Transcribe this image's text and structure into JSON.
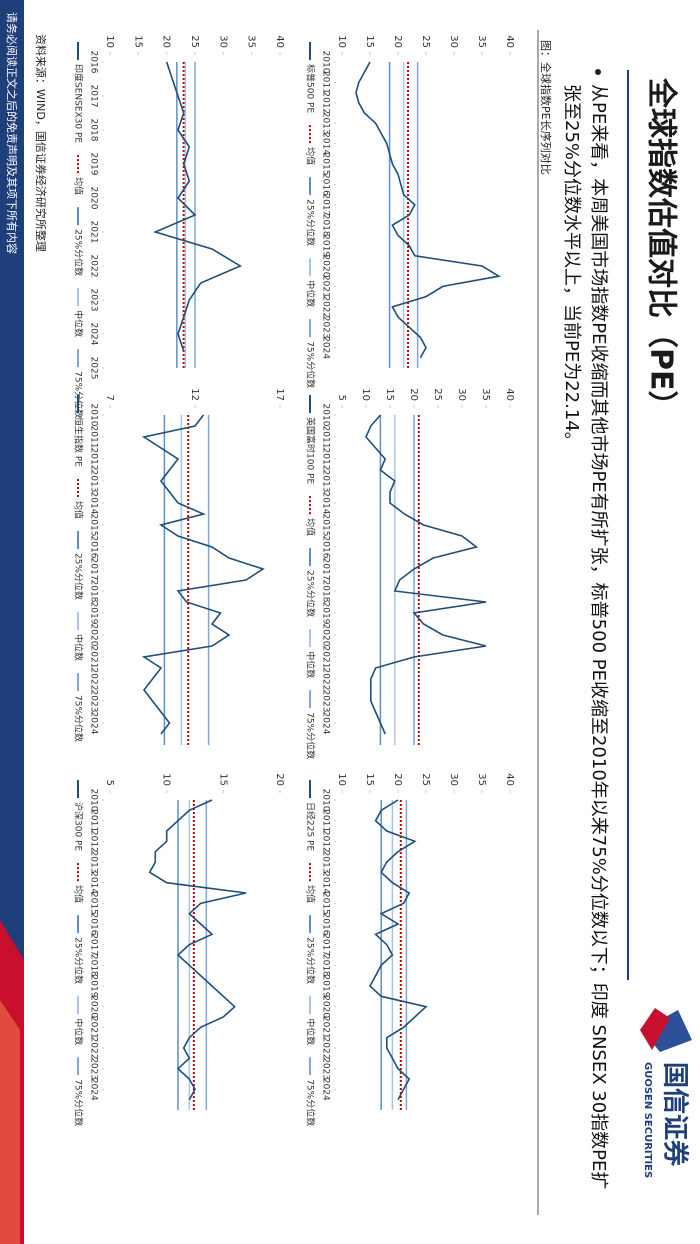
{
  "header": {
    "title": "全球指数估值对比（PE）",
    "logo_cn": "国信证券",
    "logo_en": "GUOSEN SECURITIES"
  },
  "bullet": "从PE来看，本周美国市场指数PE收缩而其他市场PE有所扩张，标普500 PE收缩至2010年以来75%分位数以下；印度 SNSEX 30指数PE扩张至25%分位数水平以上，当前PE为22.14。",
  "caption": "图：全球指数PE长序列对比",
  "source": "资料来源：WIND，国信证券经济研究所整理",
  "disclaimer": "请务必阅读正文之后的免责声明及其项下所有内容",
  "chart_data": [
    {
      "type": "line",
      "x": [
        2010,
        2010.5,
        2011,
        2011.5,
        2012,
        2012.5,
        2013,
        2013.5,
        2014,
        2014.5,
        2015,
        2015.5,
        2016,
        2016.5,
        2017,
        2017.5,
        2018,
        2018.5,
        2019,
        2019.5,
        2020,
        2020.5,
        2021,
        2021.5,
        2022,
        2022.5,
        2023,
        2023.5,
        2024,
        2024.5
      ],
      "series": [
        {
          "name": "标普500 PE",
          "color": "#1f4e79",
          "values": [
            15,
            14,
            13,
            12.5,
            13,
            14,
            16,
            17,
            18,
            18.5,
            19,
            20,
            20.5,
            21,
            23,
            22,
            19,
            20,
            22,
            23,
            35,
            38,
            28,
            25,
            19,
            20,
            22,
            24,
            25,
            24
          ]
        }
      ],
      "reference_lines": [
        {
          "name": "均值",
          "value": 21.8,
          "color": "#c00000",
          "style": "dotted"
        },
        {
          "name": "25%分位数",
          "value": 18.5,
          "color": "#5b8fd0",
          "style": "solid"
        },
        {
          "name": "中位数",
          "value": 21,
          "color": "#a9c6ea",
          "style": "solid"
        },
        {
          "name": "75%分位数",
          "value": 23.5,
          "color": "#7fa7dc",
          "style": "solid"
        }
      ],
      "xlim": [
        2010,
        2025
      ],
      "xticks": [
        2010,
        2011,
        2012,
        2013,
        2014,
        2015,
        2016,
        2017,
        2018,
        2019,
        2020,
        2021,
        2022,
        2023,
        2024
      ],
      "ylim": [
        10,
        40
      ],
      "yticks": [
        10,
        15,
        20,
        25,
        30,
        35,
        40
      ]
    },
    {
      "type": "line",
      "x": [
        2010,
        2010.5,
        2011,
        2011.5,
        2012,
        2012.5,
        2013,
        2013.5,
        2014,
        2014.5,
        2015,
        2015.5,
        2016,
        2016.5,
        2017,
        2017.5,
        2018,
        2018.5,
        2019,
        2019.5,
        2020,
        2020.5,
        2021,
        2021.5,
        2022,
        2022.5,
        2023,
        2023.5,
        2024,
        2024.5
      ],
      "series": [
        {
          "name": "英国富时100 PE",
          "color": "#1f4e79",
          "values": [
            13,
            11,
            10,
            12,
            14,
            13,
            16,
            15,
            15,
            18,
            22,
            30,
            33,
            24,
            20,
            17,
            16,
            35,
            20,
            22,
            26,
            35,
            20,
            12,
            11,
            11,
            11,
            12,
            13,
            14
          ]
        }
      ],
      "reference_lines": [
        {
          "name": "均值",
          "value": 21,
          "color": "#c00000",
          "style": "dotted"
        },
        {
          "name": "25%分位数",
          "value": 13,
          "color": "#5b8fd0",
          "style": "solid"
        },
        {
          "name": "中位数",
          "value": 16,
          "color": "#a9c6ea",
          "style": "solid"
        },
        {
          "name": "75%分位数",
          "value": 20,
          "color": "#7fa7dc",
          "style": "solid"
        }
      ],
      "xlim": [
        2010,
        2025
      ],
      "xticks": [
        2010,
        2011,
        2012,
        2013,
        2014,
        2015,
        2016,
        2017,
        2018,
        2019,
        2020,
        2021,
        2022,
        2023,
        2024
      ],
      "ylim": [
        5,
        40
      ],
      "yticks": [
        5,
        10,
        15,
        20,
        25,
        30,
        35,
        40
      ]
    },
    {
      "type": "line",
      "x": [
        2010,
        2010.5,
        2011,
        2011.5,
        2012,
        2012.5,
        2013,
        2013.5,
        2014,
        2014.5,
        2015,
        2015.5,
        2016,
        2016.5,
        2017,
        2017.5,
        2018,
        2018.5,
        2019,
        2019.5,
        2020,
        2020.5,
        2021,
        2021.5,
        2022,
        2022.5,
        2023,
        2023.5,
        2024,
        2024.5
      ],
      "series": [
        {
          "name": "日经225 PE",
          "color": "#1f4e79",
          "values": [
            20,
            17,
            16,
            18,
            23,
            20,
            18,
            17,
            19,
            22,
            21,
            17,
            20,
            16,
            18,
            19,
            17,
            16,
            15,
            17,
            25,
            23,
            21,
            18,
            18,
            19,
            20,
            22,
            21,
            20
          ]
        }
      ],
      "reference_lines": [
        {
          "name": "均值",
          "value": 20.5,
          "color": "#c00000",
          "style": "dotted"
        },
        {
          "name": "25%分位数",
          "value": 17,
          "color": "#5b8fd0",
          "style": "solid"
        },
        {
          "name": "中位数",
          "value": 19,
          "color": "#a9c6ea",
          "style": "solid"
        },
        {
          "name": "75%分位数",
          "value": 21.5,
          "color": "#7fa7dc",
          "style": "solid"
        }
      ],
      "xlim": [
        2010,
        2025
      ],
      "xticks": [
        2010,
        2011,
        2012,
        2013,
        2014,
        2015,
        2016,
        2017,
        2018,
        2019,
        2020,
        2021,
        2022,
        2023,
        2024
      ],
      "ylim": [
        10,
        40
      ],
      "yticks": [
        10,
        15,
        20,
        25,
        30,
        35,
        40
      ]
    },
    {
      "type": "line",
      "x": [
        2016,
        2016.5,
        2017,
        2017.5,
        2018,
        2018.5,
        2019,
        2019.5,
        2020,
        2020.5,
        2021,
        2021.5,
        2022,
        2022.5,
        2023,
        2023.5,
        2024,
        2024.5
      ],
      "series": [
        {
          "name": "印度SENSEX30 PE",
          "color": "#1f4e79",
          "values": [
            20,
            21,
            22,
            23,
            22,
            24,
            23,
            24,
            22,
            25,
            18,
            28,
            33,
            26,
            24,
            23,
            22,
            23
          ]
        }
      ],
      "reference_lines": [
        {
          "name": "均值",
          "value": 23,
          "color": "#c00000",
          "style": "dotted"
        },
        {
          "name": "25%分位数",
          "value": 21.8,
          "color": "#5b8fd0",
          "style": "solid"
        },
        {
          "name": "中位数",
          "value": 23.3,
          "color": "#a9c6ea",
          "style": "solid"
        },
        {
          "name": "75%分位数",
          "value": 25,
          "color": "#7fa7dc",
          "style": "solid"
        }
      ],
      "xlim": [
        2016,
        2025
      ],
      "xticks": [
        2016,
        2017,
        2018,
        2019,
        2020,
        2021,
        2022,
        2023,
        2024,
        2025
      ],
      "ylim": [
        10,
        40
      ],
      "yticks": [
        10,
        15,
        20,
        25,
        30,
        35,
        40
      ]
    },
    {
      "type": "line",
      "x": [
        2010,
        2010.5,
        2011,
        2011.5,
        2012,
        2012.5,
        2013,
        2013.5,
        2014,
        2014.5,
        2015,
        2015.5,
        2016,
        2016.5,
        2017,
        2017.5,
        2018,
        2018.5,
        2019,
        2019.5,
        2020,
        2020.5,
        2021,
        2021.5,
        2022,
        2022.5,
        2023,
        2023.5,
        2024,
        2024.5
      ],
      "series": [
        {
          "name": "恒生指数 PE",
          "color": "#1f4e79",
          "values": [
            12.5,
            12,
            9,
            10,
            11,
            10.5,
            10,
            10.5,
            11,
            12.5,
            10,
            11,
            13,
            14,
            16,
            15,
            11,
            11.5,
            13.5,
            13,
            14,
            13,
            9,
            10,
            9.5,
            9,
            9.5,
            10,
            10.5,
            10
          ]
        }
      ],
      "reference_lines": [
        {
          "name": "均值",
          "value": 11.6,
          "color": "#c00000",
          "style": "dotted"
        },
        {
          "name": "25%分位数",
          "value": 10.2,
          "color": "#5b8fd0",
          "style": "solid"
        },
        {
          "name": "中位数",
          "value": 11.2,
          "color": "#a9c6ea",
          "style": "solid"
        },
        {
          "name": "75%分位数",
          "value": 12.8,
          "color": "#7fa7dc",
          "style": "solid"
        }
      ],
      "xlim": [
        2010,
        2025
      ],
      "xticks": [
        2010,
        2011,
        2012,
        2013,
        2014,
        2015,
        2016,
        2017,
        2018,
        2019,
        2020,
        2021,
        2022,
        2023,
        2024
      ],
      "ylim": [
        7,
        17
      ],
      "yticks": [
        7,
        12,
        17
      ]
    },
    {
      "type": "line",
      "x": [
        2010,
        2010.5,
        2011,
        2011.5,
        2012,
        2012.5,
        2013,
        2013.5,
        2014,
        2014.5,
        2015,
        2015.5,
        2016,
        2016.5,
        2017,
        2017.5,
        2018,
        2018.5,
        2019,
        2019.5,
        2020,
        2020.5,
        2021,
        2021.5,
        2022,
        2022.5,
        2023,
        2023.5,
        2024,
        2024.5
      ],
      "series": [
        {
          "name": "沪深300 PE",
          "color": "#1f4e79",
          "values": [
            14,
            12,
            11,
            10,
            10,
            9,
            9,
            8.5,
            10,
            17,
            13,
            12,
            13,
            14,
            12,
            11,
            12,
            13,
            14,
            15,
            16,
            15,
            13,
            12,
            11.5,
            12,
            11,
            12,
            12.5,
            12
          ]
        }
      ],
      "reference_lines": [
        {
          "name": "均值",
          "value": 12.4,
          "color": "#c00000",
          "style": "dotted"
        },
        {
          "name": "25%分位数",
          "value": 11,
          "color": "#5b8fd0",
          "style": "solid"
        },
        {
          "name": "中位数",
          "value": 12,
          "color": "#a9c6ea",
          "style": "solid"
        },
        {
          "name": "75%分位数",
          "value": 13.5,
          "color": "#7fa7dc",
          "style": "solid"
        }
      ],
      "xlim": [
        2010,
        2025
      ],
      "xticks": [
        2010,
        2011,
        2012,
        2013,
        2014,
        2015,
        2016,
        2017,
        2018,
        2019,
        2020,
        2021,
        2022,
        2023,
        2024
      ],
      "ylim": [
        5,
        20
      ],
      "yticks": [
        5,
        10,
        15,
        20
      ]
    }
  ]
}
